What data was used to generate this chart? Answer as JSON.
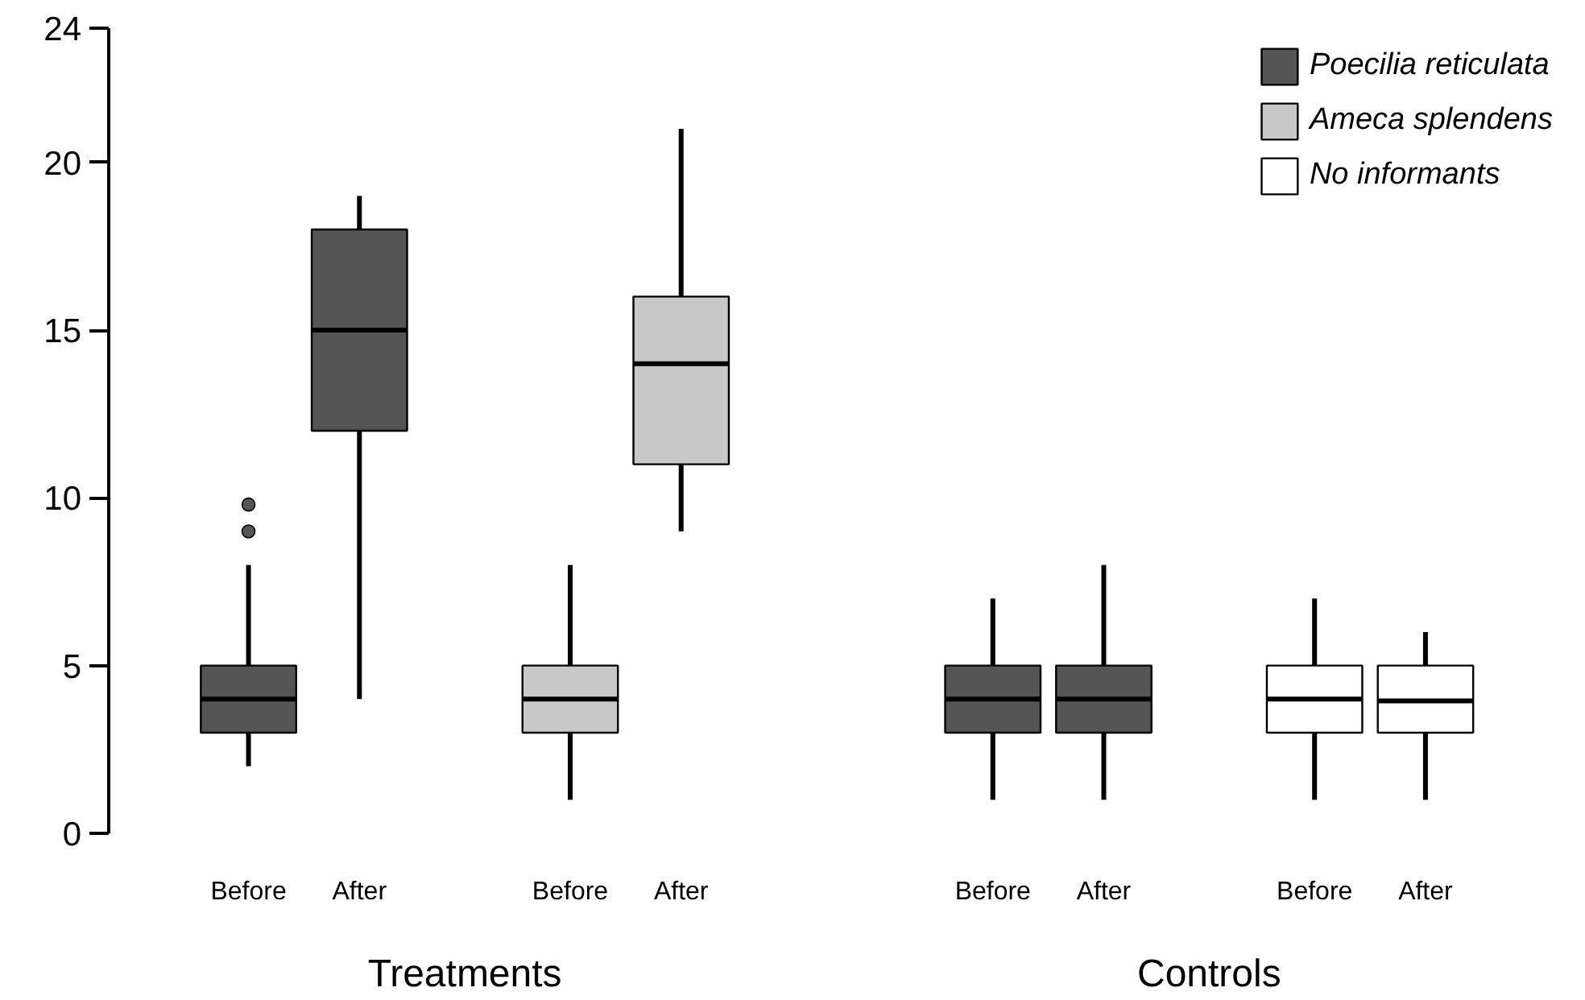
{
  "chart_data": {
    "type": "box",
    "categories": [
      "Before",
      "After",
      "Before",
      "After",
      "Before",
      "After",
      "Before",
      "After"
    ],
    "ylim": [
      0,
      24
    ],
    "yticks": [
      0,
      5,
      10,
      15,
      20,
      24
    ],
    "grid": false,
    "legend": "top right",
    "tick_labels": "y",
    "annotations": [
      "Treatments",
      "Controls"
    ],
    "series": [
      {
        "name": "Poecilia reticulata",
        "color": "#555555",
        "boxes": [
          {
            "low": 2,
            "q1": 3,
            "median": 4,
            "q3": 5,
            "high": 8,
            "outliers": [
              9.0,
              9.8
            ]
          },
          {
            "low": 4,
            "q1": 12,
            "median": 15,
            "q3": 18,
            "high": 19
          },
          null,
          null,
          {
            "low": 1,
            "q1": 3,
            "median": 4,
            "q3": 5,
            "high": 7
          },
          {
            "low": 1,
            "q1": 3,
            "median": 4,
            "q3": 5,
            "high": 8
          },
          null,
          null
        ]
      },
      {
        "name": "Ameca splendens",
        "color": "#c8c8c8",
        "boxes": [
          null,
          null,
          {
            "low": 1,
            "q1": 3,
            "median": 4,
            "q3": 5,
            "high": 8
          },
          {
            "low": 9,
            "q1": 11,
            "median": 14,
            "q3": 16,
            "high": 21
          },
          null,
          null,
          null,
          null
        ]
      },
      {
        "name": "No informants",
        "color": "#ffffff",
        "boxes": [
          null,
          null,
          null,
          null,
          null,
          null,
          {
            "low": 1,
            "q1": 3,
            "median": 4,
            "q3": 5,
            "high": 7
          },
          {
            "low": 1,
            "q1": 3,
            "median": 3.95,
            "q3": 5,
            "high": 6
          }
        ]
      }
    ]
  }
}
